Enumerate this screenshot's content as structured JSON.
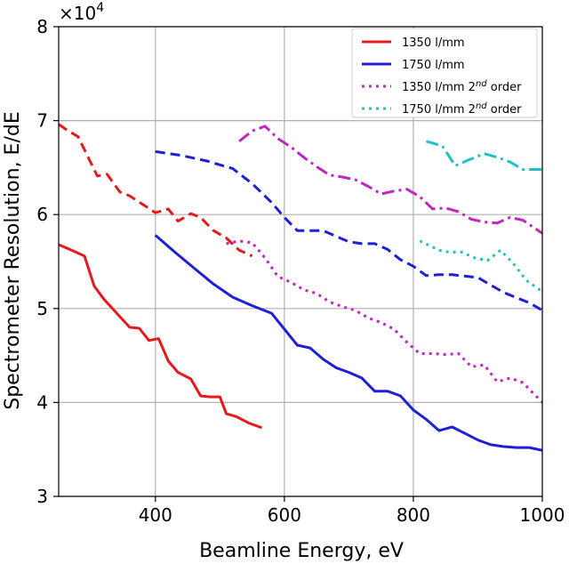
{
  "chart_data": {
    "type": "line",
    "xlabel": "Beamline Energy, eV",
    "ylabel": "Spectrometer Resolution, E/dE",
    "xlim": [
      250,
      1000
    ],
    "ylim": [
      30000,
      80000
    ],
    "x_ticks": [
      400,
      600,
      800,
      1000
    ],
    "y_ticks": [
      30000,
      40000,
      50000,
      60000,
      70000,
      80000
    ],
    "x_tick_labels": [
      "400",
      "600",
      "800",
      "1000"
    ],
    "y_tick_labels": [
      "3",
      "4",
      "5",
      "6",
      "7",
      "8"
    ],
    "y_scale_label": "×10",
    "y_scale_exponent": "4",
    "grid": true,
    "legend_position": "top-right",
    "legend": [
      {
        "label": "1350 l/mm",
        "color": "#e41a1c",
        "style": "solid"
      },
      {
        "label": "1750 l/mm",
        "color": "#1f1fd6",
        "style": "solid"
      },
      {
        "label": "1350 l/mm 2nd order",
        "label_prefix": "1350 l/mm 2",
        "label_sup": "nd",
        "label_suffix": " order",
        "color": "#c026c0",
        "style": "dotted"
      },
      {
        "label": "1750 l/mm 2nd order",
        "label_prefix": "1750 l/mm 2",
        "label_sup": "nd",
        "label_suffix": " order",
        "color": "#22c1c3",
        "style": "dotted"
      }
    ],
    "series": [
      {
        "color": "#e41a1c",
        "style": "solid",
        "x": [
          250,
          270,
          290,
          305,
          320,
          340,
          360,
          375,
          390,
          405,
          420,
          435,
          455,
          470,
          485,
          500,
          510,
          525,
          545,
          565
        ],
        "y": [
          56800,
          56200,
          55600,
          52400,
          51000,
          49500,
          48000,
          47900,
          46600,
          46800,
          44400,
          43200,
          42500,
          40700,
          40600,
          40600,
          38800,
          38500,
          37800,
          37300
        ]
      },
      {
        "color": "#e41a1c",
        "style": "dashed",
        "x": [
          250,
          265,
          280,
          295,
          310,
          325,
          345,
          360,
          380,
          400,
          420,
          435,
          455,
          470,
          490,
          510,
          530,
          550
        ],
        "y": [
          69600,
          68900,
          68300,
          66200,
          64100,
          64300,
          62400,
          62000,
          61100,
          60200,
          60600,
          59300,
          60100,
          59700,
          58300,
          57500,
          56200,
          55600
        ]
      },
      {
        "color": "#1f1fd6",
        "style": "solid",
        "x": [
          400,
          430,
          460,
          490,
          520,
          550,
          580,
          600,
          620,
          640,
          660,
          680,
          700,
          720,
          740,
          760,
          780,
          800,
          820,
          840,
          860,
          880,
          900,
          920,
          940,
          960,
          980,
          1000
        ],
        "y": [
          57800,
          56000,
          54300,
          52600,
          51200,
          50300,
          49500,
          47800,
          46100,
          45800,
          44600,
          43700,
          43200,
          42600,
          41200,
          41200,
          40700,
          39200,
          38200,
          37000,
          37400,
          36700,
          36000,
          35500,
          35300,
          35200,
          35200,
          34900
        ]
      },
      {
        "color": "#1f1fd6",
        "style": "dashed",
        "x": [
          400,
          440,
          480,
          520,
          550,
          580,
          600,
          620,
          660,
          700,
          720,
          740,
          760,
          780,
          800,
          820,
          840,
          860,
          900,
          940,
          980,
          1000
        ],
        "y": [
          66700,
          66300,
          65700,
          64900,
          63300,
          61300,
          59700,
          58300,
          58300,
          57100,
          56900,
          56900,
          56300,
          55200,
          54500,
          53500,
          53600,
          53600,
          53300,
          51700,
          50600,
          49800
        ]
      },
      {
        "color": "#c026c0",
        "style": "dashdot",
        "x": [
          530,
          550,
          570,
          590,
          610,
          630,
          650,
          670,
          690,
          710,
          730,
          750,
          770,
          790,
          810,
          830,
          850,
          870,
          890,
          910,
          930,
          950,
          970,
          1000
        ],
        "y": [
          67800,
          68900,
          69400,
          68100,
          67200,
          66100,
          65100,
          64200,
          64000,
          63700,
          63000,
          62200,
          62500,
          62700,
          61900,
          60600,
          60700,
          60300,
          59500,
          59200,
          59100,
          59700,
          59400,
          58000
        ]
      },
      {
        "color": "#c026c0",
        "style": "dotted",
        "x": [
          510,
          530,
          550,
          570,
          590,
          610,
          630,
          650,
          670,
          690,
          710,
          730,
          750,
          770,
          790,
          810,
          830,
          850,
          870,
          890,
          910,
          930,
          950,
          970,
          1000
        ],
        "y": [
          56900,
          57200,
          57000,
          55400,
          53400,
          52800,
          52000,
          51600,
          50700,
          50200,
          49800,
          49000,
          48500,
          47800,
          46400,
          45200,
          45200,
          45100,
          45200,
          43800,
          44000,
          42200,
          42600,
          42100,
          40000
        ]
      },
      {
        "color": "#22c1c3",
        "style": "dashdot",
        "x": [
          820,
          845,
          865,
          885,
          910,
          930,
          950,
          970,
          1000
        ],
        "y": [
          67800,
          67300,
          65200,
          65800,
          66500,
          66100,
          65600,
          64800,
          64800
        ]
      },
      {
        "color": "#22c1c3",
        "style": "dotted",
        "x": [
          810,
          825,
          840,
          855,
          875,
          895,
          915,
          935,
          955,
          975,
          1000
        ],
        "y": [
          57200,
          56700,
          56200,
          56000,
          56000,
          55400,
          55100,
          56200,
          54800,
          53000,
          51800
        ]
      }
    ]
  }
}
